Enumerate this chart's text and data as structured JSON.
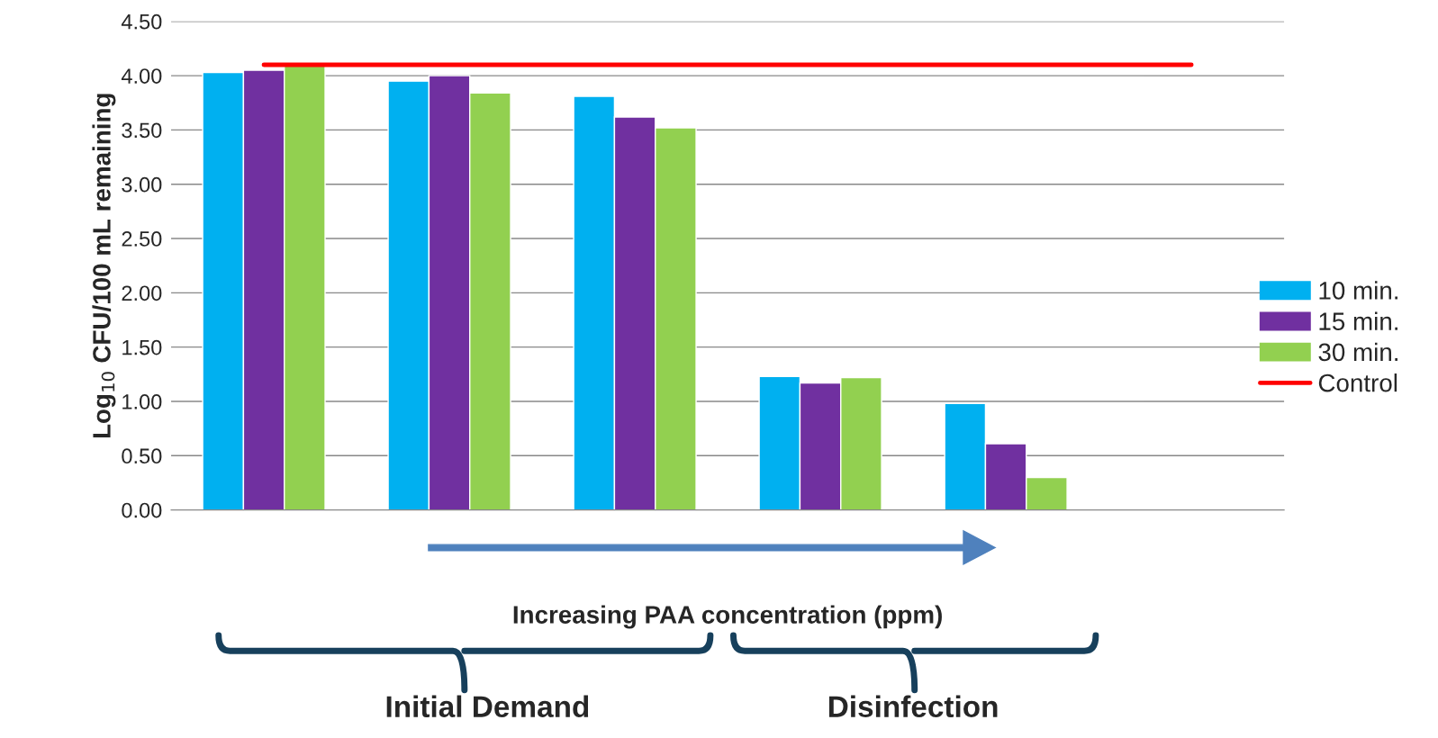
{
  "chart_data": {
    "type": "bar",
    "categories": [
      null,
      null,
      null,
      null,
      null,
      null
    ],
    "series": [
      {
        "name": "10 min.",
        "color": "#00b0f0",
        "values": [
          4.03,
          3.95,
          3.81,
          1.23,
          0.98,
          null
        ]
      },
      {
        "name": "15 min.",
        "color": "#7030a0",
        "values": [
          4.05,
          4.0,
          3.62,
          1.17,
          0.61,
          null
        ]
      },
      {
        "name": "30 min.",
        "color": "#92d050",
        "values": [
          4.09,
          3.84,
          3.52,
          1.22,
          0.3,
          null
        ]
      },
      {
        "name": "Control",
        "color": "#ff0000",
        "type": "line",
        "values": [
          4.1,
          4.1,
          4.1,
          4.1,
          4.1,
          4.1
        ]
      }
    ],
    "xlabel": "Increasing PAA concentration (ppm)",
    "ylabel": "Log$_{10}$ CFU/100 mL remaining",
    "ylim": [
      0,
      4.5
    ],
    "yticks": [
      {
        "value": 0,
        "label": "0.00"
      },
      {
        "value": 0.5,
        "label": "0.50"
      },
      {
        "value": 1,
        "label": "1.00"
      },
      {
        "value": 1.5,
        "label": "1.50"
      },
      {
        "value": 2,
        "label": "2.00"
      },
      {
        "value": 2.5,
        "label": "2.50"
      },
      {
        "value": 3,
        "label": "3.00"
      },
      {
        "value": 3.5,
        "label": "3.50"
      },
      {
        "value": 4,
        "label": "4.00"
      },
      {
        "value": 4.5,
        "label": "4.50"
      }
    ],
    "grid": "y",
    "legend": "right",
    "tick_labels": "y",
    "annotations": [
      "Initial Demand",
      "Disinfection"
    ]
  }
}
